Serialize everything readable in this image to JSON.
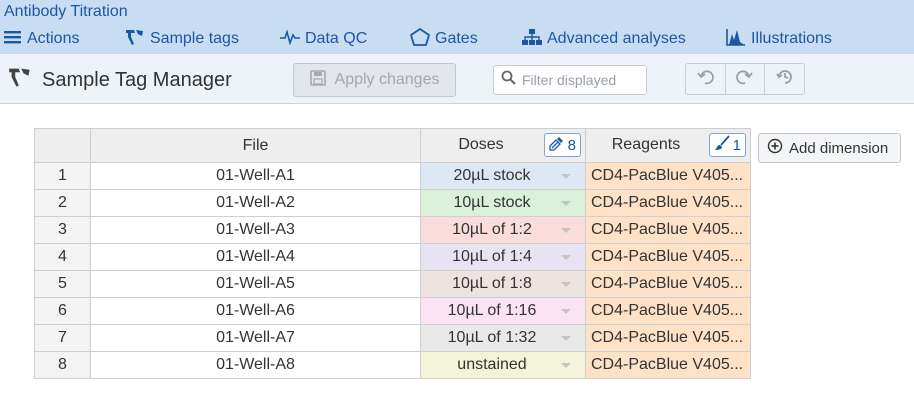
{
  "app": {
    "title": "Antibody Titration"
  },
  "menu": {
    "items": [
      {
        "label": "Actions",
        "icon": "hamburger-icon"
      },
      {
        "label": "Sample tags",
        "icon": "tag-icon"
      },
      {
        "label": "Data QC",
        "icon": "pulse-icon"
      },
      {
        "label": "Gates",
        "icon": "pentagon-icon"
      },
      {
        "label": "Advanced analyses",
        "icon": "hierarchy-icon"
      },
      {
        "label": "Illustrations",
        "icon": "histogram-icon"
      }
    ]
  },
  "toolbar": {
    "title": "Sample Tag Manager",
    "apply_label": "Apply changes",
    "filter_placeholder": "Filter displayed"
  },
  "table": {
    "headers": {
      "num": "",
      "file": "File",
      "doses": "Doses",
      "reagents": "Reagents"
    },
    "doses_badge": "8",
    "reagents_badge": "1",
    "rows": [
      {
        "num": "1",
        "file": "01-Well-A1",
        "dose": "20µL stock",
        "dose_color": "#dce9f5",
        "reagent": "CD4-PacBlue V405..."
      },
      {
        "num": "2",
        "file": "01-Well-A2",
        "dose": "10µL stock",
        "dose_color": "#d9f0d9",
        "reagent": "CD4-PacBlue V405..."
      },
      {
        "num": "3",
        "file": "01-Well-A3",
        "dose": "10µL of 1:2",
        "dose_color": "#fbdcdc",
        "reagent": "CD4-PacBlue V405..."
      },
      {
        "num": "4",
        "file": "01-Well-A4",
        "dose": "10µL of 1:4",
        "dose_color": "#e8e3f3",
        "reagent": "CD4-PacBlue V405..."
      },
      {
        "num": "5",
        "file": "01-Well-A5",
        "dose": "10µL of 1:8",
        "dose_color": "#ede3e0",
        "reagent": "CD4-PacBlue V405..."
      },
      {
        "num": "6",
        "file": "01-Well-A6",
        "dose": "10µL of 1:16",
        "dose_color": "#fbe3f3",
        "reagent": "CD4-PacBlue V405..."
      },
      {
        "num": "7",
        "file": "01-Well-A7",
        "dose": "10µL of 1:32",
        "dose_color": "#e9e9e9",
        "reagent": "CD4-PacBlue V405..."
      },
      {
        "num": "8",
        "file": "01-Well-A8",
        "dose": "unstained",
        "dose_color": "#f3f3d9",
        "reagent": "CD4-PacBlue V405..."
      }
    ]
  },
  "add_dimension_label": "Add dimension",
  "colors": {
    "accent": "#1b57a6",
    "menubar": "#c9ddf2",
    "reagent_fill": "#fde2c8"
  }
}
